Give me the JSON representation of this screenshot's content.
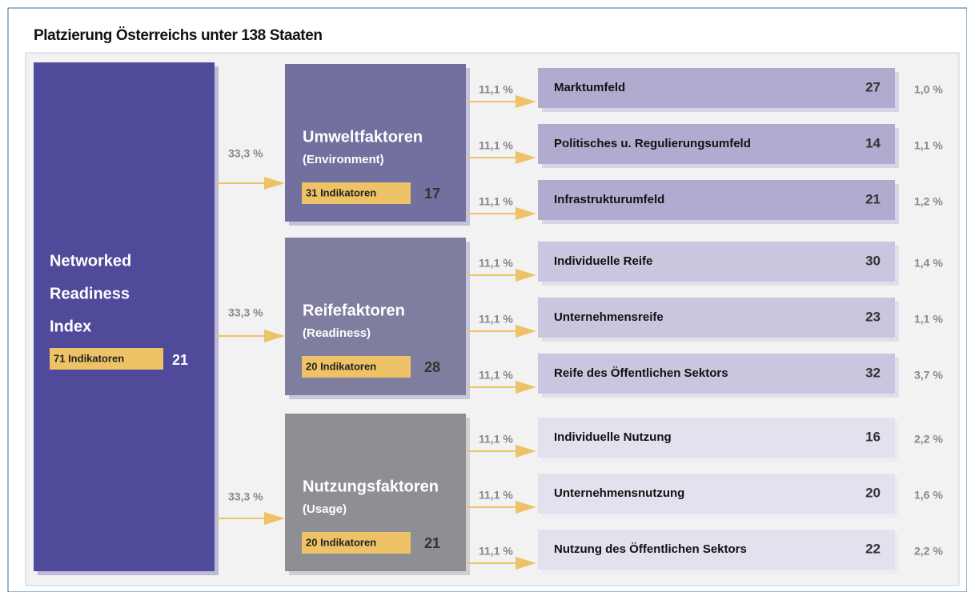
{
  "title": "Platzierung Österreichs unter 138 Staaten",
  "root": {
    "label": [
      "Networked",
      "Readiness",
      "Index"
    ],
    "indicators": "71 Indikatoren",
    "rank": 21
  },
  "groups": [
    {
      "weight": "33,3 %",
      "title": "Umweltfaktoren",
      "subtitle": "(Environment)",
      "indicators": "31 Indikatoren",
      "rank": 17,
      "children": [
        {
          "weight": "11,1 %",
          "label": "Marktumfeld",
          "rank": 27,
          "share": "1,0 %"
        },
        {
          "weight": "11,1 %",
          "label": "Politisches u. Regulierungsumfeld",
          "rank": 14,
          "share": "1,1 %"
        },
        {
          "weight": "11,1 %",
          "label": "Infrastrukturumfeld",
          "rank": 21,
          "share": "1,2 %"
        }
      ]
    },
    {
      "weight": "33,3 %",
      "title": "Reifefaktoren",
      "subtitle": "(Readiness)",
      "indicators": "20 Indikatoren",
      "rank": 28,
      "children": [
        {
          "weight": "11,1 %",
          "label": "Individuelle Reife",
          "rank": 30,
          "share": "1,4 %"
        },
        {
          "weight": "11,1 %",
          "label": "Unternehmensreife",
          "rank": 23,
          "share": "1,1 %"
        },
        {
          "weight": "11,1 %",
          "label": "Reife des Öffentlichen Sektors",
          "rank": 32,
          "share": "3,7 %"
        }
      ]
    },
    {
      "weight": "33,3 %",
      "title": "Nutzungsfaktoren",
      "subtitle": "(Usage)",
      "indicators": "20 Indikatoren",
      "rank": 21,
      "children": [
        {
          "weight": "11,1 %",
          "label": "Individuelle Nutzung",
          "rank": 16,
          "share": "2,2 %"
        },
        {
          "weight": "11,1 %",
          "label": "Unternehmensnutzung",
          "rank": 20,
          "share": "1,6 %"
        },
        {
          "weight": "11,1 %",
          "label": "Nutzung des Öffentlichen Sektors",
          "rank": 22,
          "share": "2,2 %"
        }
      ]
    }
  ]
}
